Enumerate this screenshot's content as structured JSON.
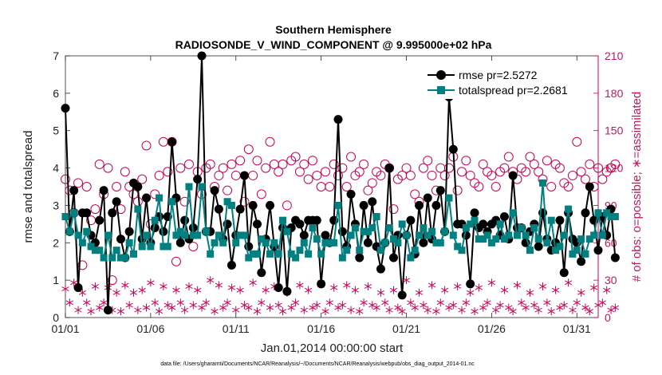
{
  "chart_data": {
    "type": "line",
    "title": "Southern Hemisphere",
    "subtitle": "RADIOSONDE_V_WIND_COMPONENT @ 9.995000e+02 hPa",
    "xlabel": "Jan.01,2014 00:00:00 start",
    "ylabel": "rmse and totalspread",
    "y2label": "# of obs: o=possible; ∗=assimilated",
    "footnote": "data file: /Users/gharamti/Documents/NCAR/Reanalysis/~/Documents/NCAR/Reanalysis/webpub/obs_diag_output_2014-01.nc",
    "x_ticks": [
      "01/01",
      "01/06",
      "01/11",
      "01/16",
      "01/21",
      "01/26",
      "01/31"
    ],
    "x_tick_days": [
      1,
      6,
      11,
      16,
      21,
      26,
      31
    ],
    "xlim": [
      1,
      32.25
    ],
    "ylim": [
      0,
      7
    ],
    "y_ticks": [
      0,
      1,
      2,
      3,
      4,
      5,
      6,
      7
    ],
    "y2lim": [
      0,
      210
    ],
    "y2_ticks": [
      0,
      30,
      60,
      90,
      120,
      150,
      180,
      210
    ],
    "legend": [
      "rmse pr=2.5272",
      "totalspread pr=2.2681"
    ],
    "colors": {
      "rmse": "#000000",
      "spread": "#008080",
      "obs": "#cc0055"
    },
    "series": [
      {
        "name": "rmse",
        "values": [
          5.6,
          2.3,
          3.4,
          0.8,
          2.8,
          2.8,
          2.2,
          2.0,
          2.6,
          3.4,
          0.2,
          2.8,
          3.1,
          2.1,
          1.6,
          2.3,
          3.6,
          3.5,
          2.1,
          3.2,
          2.0,
          2.4,
          2.7,
          2.3,
          2.7,
          4.7,
          3.2,
          2.0,
          2.6,
          2.1,
          2.4,
          3.7,
          7.0,
          2.3,
          2.3,
          3.4,
          2.9,
          2.1,
          2.5,
          1.4,
          2.2,
          2.9,
          3.8,
          1.9,
          3.0,
          2.5,
          1.2,
          2.1,
          3.0,
          1.9,
          0.8,
          2.4,
          0.7,
          2.4,
          2.6,
          2.5,
          2.2,
          2.6,
          2.6,
          2.6,
          0.9,
          2.2,
          2.0,
          2.6,
          5.3,
          2.3,
          1.9,
          3.3,
          2.5,
          1.6,
          3.0,
          2.0,
          3.1,
          1.9,
          1.3,
          2.0,
          4.0,
          1.6,
          2.2,
          0.6,
          2.2,
          2.6,
          1.7,
          3.0,
          2.0,
          3.2,
          2.1,
          3.0,
          3.4,
          2.3,
          5.9,
          4.5,
          2.5,
          2.5,
          2.2,
          0.9,
          2.8,
          2.4,
          2.5,
          2.3,
          2.5,
          2.6,
          2.2,
          2.7,
          2.1,
          3.8,
          2.4,
          2.4,
          2.0,
          2.3,
          2.5,
          1.9,
          2.8,
          2.1,
          1.8,
          2.0,
          2.6,
          1.2,
          2.8,
          2.1,
          2.0,
          1.5,
          2.8,
          3.5,
          2.6,
          1.8,
          2.7,
          2.2,
          2.9,
          1.6
        ]
      },
      {
        "name": "totalspread",
        "values": [
          2.7,
          2.3,
          2.8,
          2.2,
          2.0,
          2.3,
          1.9,
          1.8,
          1.8,
          1.6,
          2.2,
          1.6,
          1.8,
          1.6,
          1.6,
          2.0,
          1.7,
          2.9,
          1.9,
          2.2,
          1.9,
          2.6,
          3.2,
          1.9,
          1.9,
          3.1,
          2.2,
          2.3,
          2.2,
          3.5,
          2.2,
          2.2,
          3.5,
          2.3,
          1.7,
          2.0,
          2.2,
          2.0,
          3.1,
          3.0,
          2.0,
          2.2,
          2.2,
          1.6,
          1.7,
          1.7,
          2.1,
          2.0,
          1.7,
          2.0,
          1.7,
          2.6,
          2.3,
          1.7,
          1.6,
          1.8,
          2.0,
          1.7,
          2.4,
          2.1,
          1.7,
          2.0,
          2.0,
          2.0,
          3.0,
          1.6,
          1.8,
          2.2,
          2.4,
          1.8,
          2.3,
          2.3,
          2.4,
          2.7,
          1.8,
          2.0,
          2.4,
          2.1,
          2.0,
          2.5,
          2.2,
          1.6,
          1.8,
          2.2,
          2.4,
          2.2,
          2.3,
          2.0,
          2.0,
          2.3,
          3.2,
          2.2,
          1.9,
          1.8,
          2.4,
          2.5,
          2.6,
          2.1,
          2.1,
          2.2,
          2.0,
          2.1,
          2.5,
          2.1,
          2.2,
          2.8,
          2.2,
          2.4,
          2.2,
          1.8,
          2.4,
          2.1,
          3.6,
          2.0,
          2.6,
          1.8,
          1.9,
          2.2,
          2.9,
          1.7,
          1.8,
          2.1,
          1.7,
          2.1,
          2.2,
          2.8,
          2.2,
          2.8,
          2.7,
          2.7
        ]
      },
      {
        "name": "possible",
        "axis": "right",
        "values": [
          111,
          102,
          84,
          108,
          42,
          105,
          78,
          87,
          123,
          99,
          120,
          30,
          105,
          87,
          117,
          105,
          99,
          93,
          111,
          138,
          75,
          99,
          114,
          141,
          117,
          141,
          45,
          120,
          93,
          123,
          57,
          117,
          99,
          120,
          123,
          105,
          114,
          120,
          102,
          123,
          114,
          126,
          93,
          135,
          114,
          126,
          99,
          120,
          141,
          123,
          117,
          123,
          90,
          126,
          129,
          117,
          123,
          111,
          126,
          114,
          105,
          117,
          105,
          123,
          114,
          120,
          105,
          129,
          114,
          117,
          123,
          102,
          108,
          117,
          114,
          123,
          120,
          87,
          111,
          114,
          120,
          114,
          99,
          93,
          120,
          126,
          114,
          102,
          120,
          114,
          120,
          129,
          102,
          117,
          126,
          114,
          108,
          105,
          123,
          117,
          114,
          105,
          117,
          120,
          129,
          117,
          111,
          120,
          117,
          129,
          123,
          117,
          111,
          126,
          105,
          123,
          120,
          108,
          105,
          114,
          141,
          117,
          111,
          123,
          105,
          120,
          111,
          117,
          120,
          123
        ]
      },
      {
        "name": "assimilated",
        "axis": "right",
        "values": [
          23,
          12,
          28,
          6,
          20,
          12,
          5,
          25,
          8,
          12,
          24,
          6,
          20,
          5,
          26,
          10,
          20,
          6,
          22,
          8,
          28,
          12,
          5,
          25,
          10,
          8,
          22,
          12,
          6,
          25,
          10,
          22,
          8,
          12,
          30,
          5,
          26,
          8,
          12,
          24,
          6,
          22,
          10,
          8,
          28,
          5,
          12,
          22,
          8,
          25,
          10,
          5,
          20,
          8,
          12,
          26,
          6,
          22,
          8,
          10,
          28,
          5,
          12,
          24,
          8,
          10,
          26,
          6,
          22,
          5,
          12,
          25,
          10,
          8,
          20,
          12,
          6,
          22,
          8,
          5,
          30,
          12,
          8,
          20,
          10,
          6,
          26,
          5,
          12,
          22,
          8,
          10,
          25,
          6,
          12,
          20,
          5,
          24,
          8,
          12,
          28,
          6,
          10,
          22,
          8,
          5,
          26,
          12,
          8,
          20,
          10,
          6,
          25,
          12,
          5,
          22,
          8,
          10,
          28,
          6,
          12,
          20,
          8,
          5,
          24,
          10,
          12,
          22,
          6,
          8
        ]
      }
    ]
  }
}
